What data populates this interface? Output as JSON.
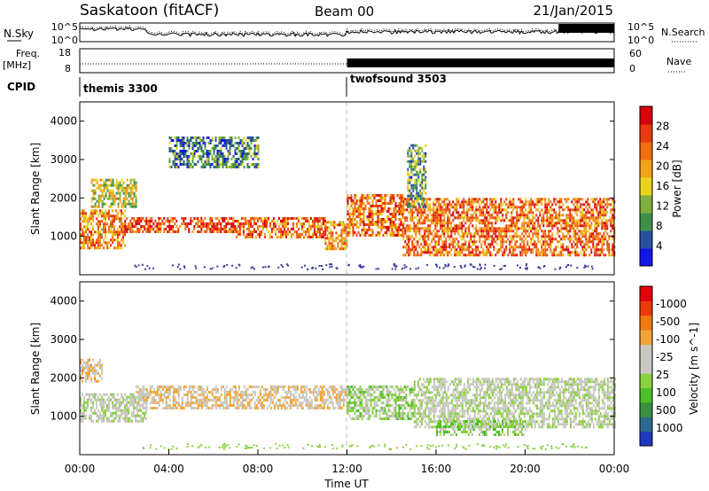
{
  "header": {
    "station": "Saskatoon (fitACF)",
    "beam": "Beam 00",
    "date": "21/Jan/2015"
  },
  "top_panels": {
    "nsky": {
      "left_label": "N.Sky",
      "right_label": "N.Search",
      "left_ticks": [
        "10^5",
        "10^0"
      ],
      "right_ticks": [
        "10^5",
        "10^0"
      ]
    },
    "freq": {
      "left_label": "Freq.",
      "left_units": "[MHz]",
      "left_ticks": [
        "18",
        "8"
      ],
      "right_label": "Nave",
      "right_ticks": [
        "60",
        "0"
      ]
    },
    "cpid": {
      "label": "CPID",
      "modes": [
        {
          "name": "themis 3300",
          "start_hour": 0
        },
        {
          "name": "twofsound 3503",
          "start_hour": 12
        }
      ]
    }
  },
  "xaxis": {
    "title": "Time UT",
    "ticks": [
      "00:00",
      "04:00",
      "08:00",
      "12:00",
      "16:00",
      "20:00",
      "00:00"
    ]
  },
  "colors": {
    "power": [
      "#1414e6",
      "#28509e",
      "#3f8f4a",
      "#7fb03e",
      "#e8d21c",
      "#f2a21a",
      "#f06d10",
      "#e83a0e",
      "#d8000a"
    ],
    "velocity": [
      "#e4000b",
      "#ec3a0a",
      "#f07a10",
      "#f3a436",
      "#c8c8c0",
      "#c8c8c0",
      "#8ad040",
      "#4cbf2a",
      "#3b8f40",
      "#2d6b8e",
      "#2038c0"
    ]
  },
  "chart_data": [
    {
      "type": "heatmap",
      "title": "",
      "xlabel": "",
      "ylabel": "Slant Range [km]",
      "xlim_hours": [
        0,
        24
      ],
      "ylim_km": [
        0,
        4500
      ],
      "yticks": [
        "1000",
        "2000",
        "3000",
        "4000"
      ],
      "colorbar": {
        "label": "Power [dB]",
        "tick_labels": [
          "4",
          "8",
          "12",
          "16",
          "20",
          "24",
          "28"
        ],
        "range": [
          0,
          30
        ]
      },
      "echo_bands": [
        {
          "hours": [
            0,
            2
          ],
          "range_km": [
            700,
            1700
          ],
          "power_db": 20
        },
        {
          "hours": [
            0.5,
            2.5
          ],
          "range_km": [
            1800,
            2500
          ],
          "power_db": 14
        },
        {
          "hours": [
            2,
            7
          ],
          "range_km": [
            1100,
            1500
          ],
          "power_db": 24
        },
        {
          "hours": [
            7,
            11
          ],
          "range_km": [
            1000,
            1500
          ],
          "power_db": 22
        },
        {
          "hours": [
            11,
            12
          ],
          "range_km": [
            700,
            1400
          ],
          "power_db": 20
        },
        {
          "hours": [
            12,
            14.5
          ],
          "range_km": [
            1000,
            2100
          ],
          "power_db": 22
        },
        {
          "hours": [
            14.5,
            24
          ],
          "range_km": [
            500,
            2000
          ],
          "power_db": 22
        },
        {
          "hours": [
            4,
            8
          ],
          "range_km": [
            2800,
            3600
          ],
          "power_db": 8
        },
        {
          "hours": [
            14.7,
            15.5
          ],
          "range_km": [
            1800,
            3400
          ],
          "power_db": 10
        }
      ]
    },
    {
      "type": "heatmap",
      "title": "",
      "xlabel": "Time UT",
      "ylabel": "Slant Range [km]",
      "xlim_hours": [
        0,
        24
      ],
      "ylim_km": [
        0,
        4500
      ],
      "yticks": [
        "1000",
        "2000",
        "3000",
        "4000"
      ],
      "colorbar": {
        "label": "Velocity [m s^-1]",
        "tick_labels": [
          "1000",
          "500",
          "100",
          "25",
          "-25",
          "-100",
          "-500",
          "-1000"
        ]
      },
      "echo_bands": [
        {
          "hours": [
            0,
            3
          ],
          "range_km": [
            900,
            1600
          ],
          "velocity": 0
        },
        {
          "hours": [
            0,
            1
          ],
          "range_km": [
            1900,
            2500
          ],
          "velocity": -300
        },
        {
          "hours": [
            2.5,
            12
          ],
          "range_km": [
            1200,
            1800
          ],
          "velocity": -250
        },
        {
          "hours": [
            12,
            15
          ],
          "range_km": [
            900,
            1800
          ],
          "velocity": 150
        },
        {
          "hours": [
            15,
            24
          ],
          "range_km": [
            700,
            2000
          ],
          "velocity": 0
        },
        {
          "hours": [
            16,
            20
          ],
          "range_km": [
            500,
            900
          ],
          "velocity": 200
        }
      ]
    }
  ]
}
